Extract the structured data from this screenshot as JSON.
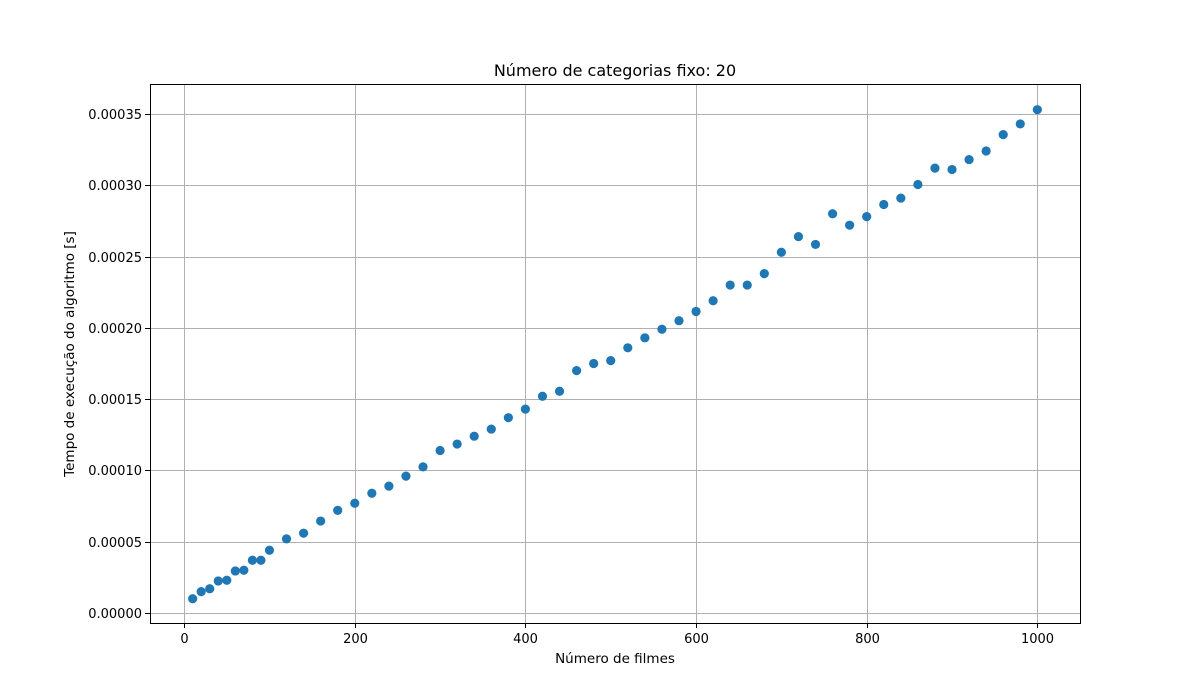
{
  "chart_data": {
    "type": "scatter",
    "title": "Número de categorias fixo: 20",
    "xlabel": "Número de filmes",
    "ylabel": "Tempo de execução do algoritmo [s]",
    "xlim": [
      -40,
      1050
    ],
    "ylim": [
      -7e-06,
      0.000371
    ],
    "xticks": [
      0,
      200,
      400,
      600,
      800,
      1000
    ],
    "xtick_labels": [
      "0",
      "200",
      "400",
      "600",
      "800",
      "1000"
    ],
    "yticks": [
      0,
      5e-05,
      0.0001,
      0.00015,
      0.0002,
      0.00025,
      0.0003,
      0.00035
    ],
    "ytick_labels": [
      "0.00000",
      "0.00005",
      "0.00010",
      "0.00015",
      "0.00020",
      "0.00025",
      "0.00030",
      "0.00035"
    ],
    "grid": true,
    "marker_color": "#1f77b4",
    "x": [
      10,
      20,
      30,
      40,
      50,
      60,
      70,
      80,
      90,
      100,
      120,
      140,
      160,
      180,
      200,
      220,
      240,
      260,
      280,
      300,
      320,
      340,
      360,
      380,
      400,
      420,
      440,
      460,
      480,
      500,
      520,
      540,
      560,
      580,
      600,
      620,
      640,
      660,
      680,
      700,
      720,
      740,
      760,
      780,
      800,
      820,
      840,
      860,
      880,
      900,
      920,
      940,
      960,
      980,
      1000
    ],
    "y": [
      1e-05,
      1.5e-05,
      1.7e-05,
      2.25e-05,
      2.3e-05,
      2.95e-05,
      3e-05,
      3.7e-05,
      3.7e-05,
      4.4e-05,
      5.2e-05,
      5.6e-05,
      6.45e-05,
      7.2e-05,
      7.7e-05,
      8.4e-05,
      8.9e-05,
      9.6e-05,
      0.0001025,
      0.000114,
      0.0001185,
      0.000124,
      0.000129,
      0.000137,
      0.000143,
      0.000152,
      0.0001555,
      0.00017,
      0.000175,
      0.000177,
      0.000186,
      0.000193,
      0.000199,
      0.000205,
      0.0002115,
      0.000219,
      0.00023,
      0.00023,
      0.000238,
      0.000253,
      0.000264,
      0.0002585,
      0.00028,
      0.000272,
      0.000278,
      0.0002865,
      0.000291,
      0.0003005,
      0.000312,
      0.000311,
      0.000318,
      0.000324,
      0.0003355,
      0.000343,
      0.000353
    ]
  }
}
